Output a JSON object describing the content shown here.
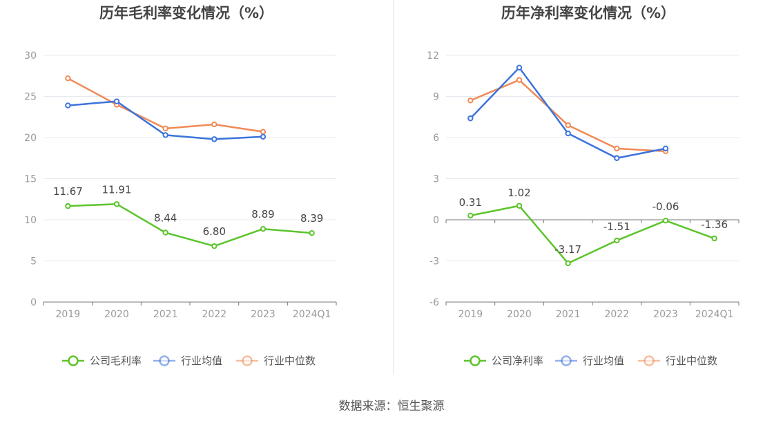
{
  "source": "数据来源：恒生聚源",
  "colors": {
    "company": "#5cc42c",
    "industry_avg": "#3c73dc",
    "industry_median": "#f08a55"
  },
  "chart_data": [
    {
      "type": "line",
      "title": "历年毛利率变化情况（%）",
      "categories": [
        "2019",
        "2020",
        "2021",
        "2022",
        "2023",
        "2024Q1"
      ],
      "ylim": [
        0,
        30
      ],
      "yticks": [
        0,
        5,
        10,
        15,
        20,
        25,
        30
      ],
      "grid": true,
      "legend_position": "bottom",
      "series": [
        {
          "name": "公司毛利率",
          "key": "company",
          "values": [
            11.67,
            11.91,
            8.44,
            6.8,
            8.89,
            8.39
          ],
          "labels": [
            "11.67",
            "11.91",
            "8.44",
            "6.80",
            "8.89",
            "8.39"
          ]
        },
        {
          "name": "行业均值",
          "key": "industry_avg",
          "values": [
            23.9,
            24.4,
            20.3,
            19.8,
            20.1,
            null
          ]
        },
        {
          "name": "行业中位数",
          "key": "industry_median",
          "values": [
            27.2,
            24.0,
            21.1,
            21.6,
            20.7,
            null
          ]
        }
      ]
    },
    {
      "type": "line",
      "title": "历年净利率变化情况（%）",
      "categories": [
        "2019",
        "2020",
        "2021",
        "2022",
        "2023",
        "2024Q1"
      ],
      "ylim": [
        -6,
        12
      ],
      "yticks": [
        -6,
        -3,
        0,
        3,
        6,
        9,
        12
      ],
      "grid": true,
      "legend_position": "bottom",
      "series": [
        {
          "name": "公司净利率",
          "key": "company",
          "values": [
            0.31,
            1.02,
            -3.17,
            -1.51,
            -0.06,
            -1.36
          ],
          "labels": [
            "0.31",
            "1.02",
            "-3.17",
            "-1.51",
            "-0.06",
            "-1.36"
          ]
        },
        {
          "name": "行业均值",
          "key": "industry_avg",
          "values": [
            7.4,
            11.1,
            6.3,
            4.5,
            5.2,
            null
          ]
        },
        {
          "name": "行业中位数",
          "key": "industry_median",
          "values": [
            8.7,
            10.2,
            6.9,
            5.2,
            5.0,
            null
          ]
        }
      ]
    }
  ]
}
